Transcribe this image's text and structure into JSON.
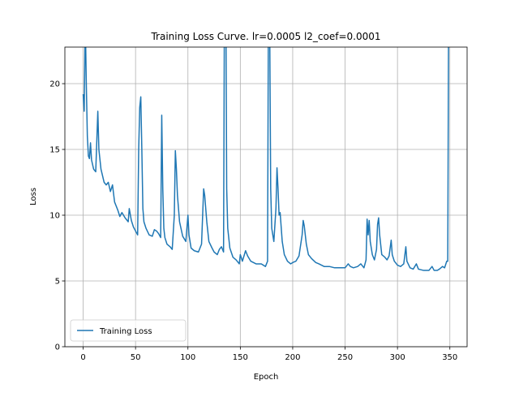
{
  "chart_data": {
    "type": "line",
    "title": "Training Loss Curve. lr=0.0005 l2_coef=0.0001",
    "x_label": "Epoch",
    "y_label": "Loss",
    "x": [
      0,
      1,
      2,
      3,
      4,
      5,
      6,
      7,
      8,
      10,
      12,
      14,
      15,
      17,
      20,
      22,
      24,
      26,
      28,
      30,
      33,
      35,
      37,
      40,
      43,
      44,
      46,
      48,
      50,
      52,
      53,
      54,
      55,
      56,
      57,
      58,
      60,
      63,
      66,
      68,
      70,
      72,
      74,
      75,
      76,
      77,
      78,
      80,
      83,
      85,
      87,
      88,
      89,
      90,
      92,
      95,
      98,
      100,
      101,
      103,
      106,
      110,
      113,
      115,
      116,
      118,
      120,
      123,
      125,
      128,
      130,
      132,
      134,
      135,
      136,
      137,
      138,
      140,
      143,
      146,
      149,
      150,
      152,
      155,
      157,
      160,
      165,
      170,
      174,
      176,
      177,
      178,
      179,
      180,
      182,
      184,
      185,
      186,
      187,
      188,
      190,
      192,
      195,
      198,
      200,
      203,
      206,
      209,
      210,
      211,
      213,
      215,
      218,
      222,
      225,
      230,
      235,
      240,
      245,
      250,
      253,
      255,
      258,
      262,
      265,
      268,
      270,
      271,
      272,
      273,
      274,
      276,
      278,
      280,
      281,
      282,
      283,
      285,
      288,
      290,
      292,
      294,
      295,
      297,
      300,
      303,
      306,
      308,
      309,
      312,
      315,
      318,
      320,
      325,
      330,
      333,
      335,
      338,
      340,
      343,
      345,
      347,
      348,
      349
    ],
    "series": [
      {
        "name": "Training Loss",
        "color": "#1f77b4",
        "values": [
          19.2,
          17.9,
          25,
          20,
          16,
          14.5,
          14.3,
          15.5,
          14.2,
          13.5,
          13.3,
          17.9,
          15,
          13.5,
          12.5,
          12.3,
          12.5,
          11.8,
          12.3,
          11,
          10.4,
          9.9,
          10.2,
          9.8,
          9.5,
          10.5,
          9.6,
          9.1,
          8.8,
          8.5,
          15,
          18.2,
          19,
          15,
          10.5,
          9.5,
          9,
          8.5,
          8.4,
          8.9,
          8.8,
          8.6,
          8.3,
          17.6,
          12,
          9,
          8.3,
          7.8,
          7.6,
          7.4,
          10,
          14.9,
          13.5,
          11.5,
          9.5,
          8.4,
          8,
          10,
          8.5,
          7.5,
          7.3,
          7.2,
          7.8,
          12,
          11.5,
          9.5,
          8,
          7.5,
          7.2,
          7,
          7.4,
          7.6,
          7.2,
          30,
          30,
          12,
          9,
          7.5,
          6.8,
          6.6,
          6.3,
          7,
          6.5,
          7.3,
          6.9,
          6.5,
          6.3,
          6.3,
          6.1,
          6.5,
          30,
          25,
          12,
          9,
          8,
          10.5,
          13.6,
          12,
          10,
          10.2,
          8,
          7,
          6.5,
          6.3,
          6.4,
          6.5,
          6.9,
          8.5,
          9.6,
          9.2,
          7.8,
          7,
          6.7,
          6.4,
          6.3,
          6.1,
          6.1,
          6,
          6,
          6,
          6.3,
          6.1,
          6,
          6.1,
          6.3,
          6,
          6.6,
          9.7,
          8.5,
          9.6,
          8,
          7,
          6.6,
          7.4,
          9.3,
          9.8,
          8.5,
          7,
          6.8,
          6.6,
          6.9,
          8.1,
          7,
          6.5,
          6.2,
          6.1,
          6.3,
          7.6,
          6.5,
          6,
          5.9,
          6.3,
          5.9,
          5.8,
          5.8,
          6.1,
          5.8,
          5.8,
          5.9,
          6.1,
          6,
          6.5,
          6.5,
          30
        ]
      }
    ],
    "xlim": [
      -17.45,
      366.45
    ],
    "ylim": [
      0,
      22.78
    ],
    "xticks": [
      0,
      50,
      100,
      150,
      200,
      250,
      300,
      350
    ],
    "yticks": [
      0,
      5,
      10,
      15,
      20
    ],
    "grid": true,
    "legend": "lower left"
  }
}
